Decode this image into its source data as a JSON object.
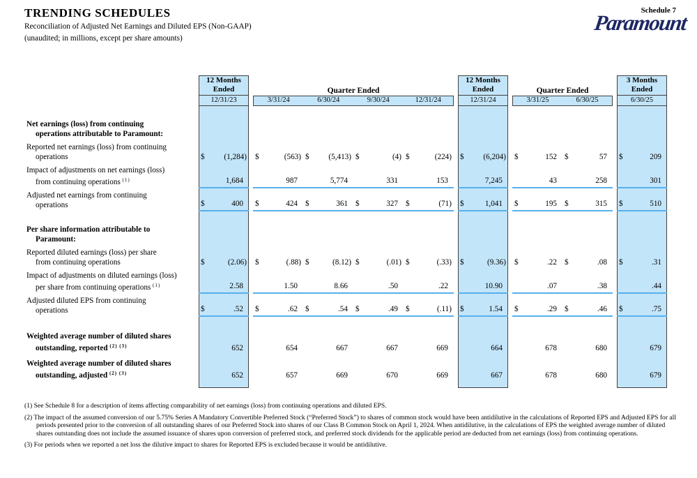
{
  "header": {
    "title": "TRENDING SCHEDULES",
    "subtitle_line1": "Reconciliation of Adjusted Net Earnings and Diluted EPS (Non-GAAP)",
    "subtitle_line2": "(unaudited; in millions, except per share amounts)",
    "schedule_label": "Schedule 7",
    "logo_text": "Paramount"
  },
  "table": {
    "colors": {
      "highlight": "#c3e5f9",
      "underline": "#57b0ec",
      "border": "#3f3f3f",
      "logo_navy": "#1d2763"
    },
    "group_headers": {
      "twelve_months_lines": [
        "12 Months",
        "Ended"
      ],
      "quarter_label": "Quarter Ended",
      "three_months_lines": [
        "3 Months",
        "Ended"
      ]
    },
    "dates": [
      "12/31/23",
      "3/31/24",
      "6/30/24",
      "9/30/24",
      "12/31/24",
      "12/31/24",
      "3/31/25",
      "6/30/25",
      "6/30/25"
    ],
    "rows": [
      {
        "type": "section",
        "lines": [
          "Net earnings (loss) from continuing",
          "operations attributable to Paramount:"
        ]
      },
      {
        "type": "data",
        "lines": [
          "Reported net earnings (loss) from continuing",
          "operations"
        ],
        "dollar": true,
        "underline": false,
        "values": [
          "(1,284)",
          "(563)",
          "(5,413)",
          "(4)",
          "(224)",
          "(6,204)",
          "152",
          "57",
          "209"
        ]
      },
      {
        "type": "data",
        "lines": [
          "Impact of adjustments on net earnings (loss)",
          "from continuing operations"
        ],
        "sup": "(1)",
        "dollar": false,
        "underline": true,
        "values": [
          "1,684",
          "987",
          "5,774",
          "331",
          "153",
          "7,245",
          "43",
          "258",
          "301"
        ]
      },
      {
        "type": "data",
        "lines": [
          "Adjusted net earnings from continuing",
          "operations"
        ],
        "dollar": true,
        "underline": true,
        "values": [
          "400",
          "424",
          "361",
          "327",
          "(71)",
          "1,041",
          "195",
          "315",
          "510"
        ]
      },
      {
        "type": "section",
        "lines": [
          "Per share information attributable to",
          "Paramount:"
        ]
      },
      {
        "type": "data",
        "lines": [
          "Reported diluted earnings (loss) per share",
          "from continuing operations"
        ],
        "dollar": true,
        "underline": false,
        "values": [
          "(2.06)",
          "(.88)",
          "(8.12)",
          "(.01)",
          "(.33)",
          "(9.36)",
          ".22",
          ".08",
          ".31"
        ]
      },
      {
        "type": "data",
        "lines": [
          "Impact of adjustments on diluted earnings (loss)",
          "per share from continuing operations"
        ],
        "sup": "(1)",
        "dollar": false,
        "underline": true,
        "values": [
          "2.58",
          "1.50",
          "8.66",
          ".50",
          ".22",
          "10.90",
          ".07",
          ".38",
          ".44"
        ]
      },
      {
        "type": "data",
        "lines": [
          "Adjusted diluted EPS from continuing",
          "operations"
        ],
        "dollar": true,
        "underline": true,
        "values": [
          ".52",
          ".62",
          ".54",
          ".49",
          "(.11)",
          "1.54",
          ".29",
          ".46",
          ".75"
        ]
      },
      {
        "type": "shares",
        "lines": [
          "Weighted average number of diluted shares",
          "outstanding, reported"
        ],
        "sup": "(2) (3)",
        "dollar": false,
        "underline": false,
        "values": [
          "652",
          "654",
          "667",
          "667",
          "669",
          "664",
          "678",
          "680",
          "679"
        ]
      },
      {
        "type": "shares",
        "lines": [
          "Weighted average number of diluted shares",
          "outstanding, adjusted"
        ],
        "sup": "(2) (3)",
        "dollar": false,
        "underline": false,
        "values": [
          "652",
          "657",
          "669",
          "670",
          "669",
          "667",
          "678",
          "680",
          "679"
        ]
      }
    ]
  },
  "footnotes": [
    {
      "marker": "(1)",
      "text": "See Schedule 8 for a description of items affecting comparability of net earnings (loss) from continuing operations and diluted EPS."
    },
    {
      "marker": "(2)",
      "text": "The impact of the assumed conversion of our 5.75% Series A Mandatory Convertible Preferred Stock (“Preferred Stock”) to shares of common stock would have been antidilutive in the calculations of Reported EPS and Adjusted EPS for all periods presented prior to the conversion of all outstanding shares of our Preferred Stock into shares of our Class B Common Stock on April 1, 2024. When antidilutive, in the calculations of EPS the weighted average number of diluted shares outstanding does not include the assumed issuance of shares upon conversion of preferred stock, and preferred stock dividends for the applicable period are deducted from net earnings (loss) from continuing operations."
    },
    {
      "marker": "(3)",
      "text": "For periods when we reported a net loss the dilutive impact to shares for Reported EPS is excluded because it would be antidilutive."
    }
  ]
}
